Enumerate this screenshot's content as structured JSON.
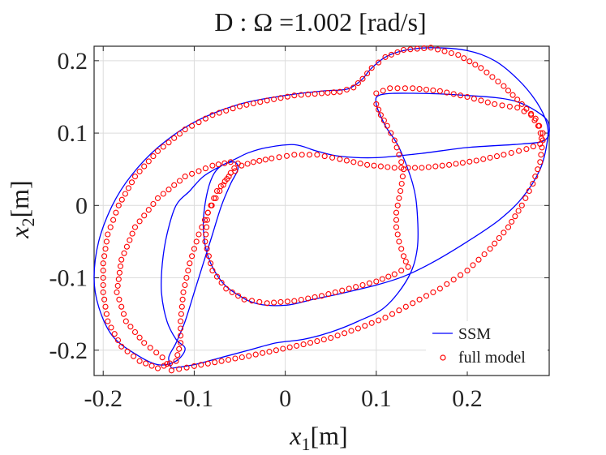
{
  "chart_data": {
    "type": "line",
    "title": "D : Ω =1.002 [rad/s]",
    "xlabel": {
      "symbol": "x",
      "sub": "1",
      "unit": "[m]"
    },
    "ylabel": {
      "symbol": "x",
      "sub": "2",
      "unit": "[m]"
    },
    "xlim": [
      -0.21,
      0.29
    ],
    "ylim": [
      -0.235,
      0.22
    ],
    "xticks": [
      -0.2,
      -0.1,
      0,
      0.1,
      0.2
    ],
    "xtick_labels": [
      "-0.2",
      "-0.1",
      "0",
      "0.1",
      "0.2"
    ],
    "yticks": [
      -0.2,
      -0.1,
      0,
      0.1,
      0.2
    ],
    "ytick_labels": [
      "-0.2",
      "-0.1",
      "0",
      "0.1",
      "0.2"
    ],
    "grid": true,
    "legend_position": "bottom-right",
    "series": [
      {
        "name": "SSM",
        "style": "line",
        "color": "#0000ff",
        "points": [
          [
            -0.125,
            -0.225
          ],
          [
            -0.1,
            -0.22
          ],
          [
            -0.07,
            -0.21
          ],
          [
            -0.04,
            -0.2
          ],
          [
            -0.01,
            -0.19
          ],
          [
            0.02,
            -0.185
          ],
          [
            0.05,
            -0.175
          ],
          [
            0.08,
            -0.16
          ],
          [
            0.11,
            -0.14
          ],
          [
            0.135,
            -0.1
          ],
          [
            0.145,
            -0.06
          ],
          [
            0.145,
            -0.01
          ],
          [
            0.14,
            0.03
          ],
          [
            0.125,
            0.08
          ],
          [
            0.11,
            0.11
          ],
          [
            0.1,
            0.14
          ],
          [
            0.105,
            0.153
          ],
          [
            0.14,
            0.155
          ],
          [
            0.2,
            0.152
          ],
          [
            0.25,
            0.145
          ],
          [
            0.282,
            0.125
          ],
          [
            0.29,
            0.108
          ],
          [
            0.285,
            0.09
          ],
          [
            0.26,
            0.085
          ],
          [
            0.2,
            0.08
          ],
          [
            0.15,
            0.072
          ],
          [
            0.1,
            0.066
          ],
          [
            0.06,
            0.068
          ],
          [
            0.035,
            0.075
          ],
          [
            0.01,
            0.084
          ],
          [
            -0.02,
            0.08
          ],
          [
            -0.04,
            0.073
          ],
          [
            -0.055,
            0.064
          ],
          [
            -0.07,
            0.055
          ],
          [
            -0.09,
            0.04
          ],
          [
            -0.105,
            0.02
          ],
          [
            -0.12,
            0
          ],
          [
            -0.13,
            -0.04
          ],
          [
            -0.135,
            -0.08
          ],
          [
            -0.136,
            -0.12
          ],
          [
            -0.13,
            -0.16
          ],
          [
            -0.12,
            -0.185
          ],
          [
            -0.11,
            -0.198
          ],
          [
            -0.12,
            -0.215
          ],
          [
            -0.14,
            -0.22
          ],
          [
            -0.165,
            -0.205
          ],
          [
            -0.19,
            -0.18
          ],
          [
            -0.205,
            -0.14
          ],
          [
            -0.21,
            -0.1
          ],
          [
            -0.205,
            -0.05
          ],
          [
            -0.19,
            0
          ],
          [
            -0.17,
            0.04
          ],
          [
            -0.14,
            0.08
          ],
          [
            -0.1,
            0.115
          ],
          [
            -0.05,
            0.14
          ],
          [
            0,
            0.152
          ],
          [
            0.04,
            0.158
          ],
          [
            0.065,
            0.16
          ],
          [
            0.075,
            0.165
          ],
          [
            0.085,
            0.175
          ],
          [
            0.095,
            0.19
          ],
          [
            0.11,
            0.205
          ],
          [
            0.13,
            0.214
          ],
          [
            0.16,
            0.218
          ],
          [
            0.2,
            0.214
          ],
          [
            0.23,
            0.2
          ],
          [
            0.255,
            0.175
          ],
          [
            0.275,
            0.145
          ],
          [
            0.287,
            0.115
          ],
          [
            0.288,
            0.09
          ],
          [
            0.28,
            0.05
          ],
          [
            0.26,
            0.01
          ],
          [
            0.235,
            -0.02
          ],
          [
            0.2,
            -0.05
          ],
          [
            0.16,
            -0.08
          ],
          [
            0.13,
            -0.098
          ],
          [
            0.1,
            -0.11
          ],
          [
            0.06,
            -0.122
          ],
          [
            0.03,
            -0.13
          ],
          [
            0,
            -0.138
          ],
          [
            -0.03,
            -0.136
          ],
          [
            -0.05,
            -0.125
          ],
          [
            -0.07,
            -0.105
          ],
          [
            -0.085,
            -0.07
          ],
          [
            -0.09,
            -0.03
          ],
          [
            -0.087,
            0.01
          ],
          [
            -0.08,
            0.04
          ],
          [
            -0.07,
            0.055
          ],
          [
            -0.056,
            0.06
          ],
          [
            -0.052,
            0.05
          ],
          [
            -0.06,
            0.03
          ],
          [
            -0.07,
            0
          ],
          [
            -0.08,
            -0.04
          ],
          [
            -0.09,
            -0.08
          ],
          [
            -0.1,
            -0.12
          ],
          [
            -0.11,
            -0.16
          ],
          [
            -0.12,
            -0.19
          ],
          [
            -0.128,
            -0.21
          ],
          [
            -0.125,
            -0.225
          ]
        ]
      },
      {
        "name": "full model",
        "style": "markers",
        "color": "#ff0000",
        "points": [
          [
            -0.125,
            -0.228
          ],
          [
            -0.1,
            -0.222
          ],
          [
            -0.07,
            -0.215
          ],
          [
            -0.04,
            -0.208
          ],
          [
            -0.01,
            -0.2
          ],
          [
            0.02,
            -0.192
          ],
          [
            0.05,
            -0.183
          ],
          [
            0.08,
            -0.17
          ],
          [
            0.11,
            -0.155
          ],
          [
            0.14,
            -0.135
          ],
          [
            0.17,
            -0.115
          ],
          [
            0.2,
            -0.09
          ],
          [
            0.225,
            -0.06
          ],
          [
            0.245,
            -0.03
          ],
          [
            0.26,
            0
          ],
          [
            0.272,
            0.03
          ],
          [
            0.28,
            0.06
          ],
          [
            0.283,
            0.09
          ],
          [
            0.278,
            0.11
          ],
          [
            0.27,
            0.125
          ],
          [
            0.255,
            0.135
          ],
          [
            0.23,
            0.14
          ],
          [
            0.2,
            0.15
          ],
          [
            0.17,
            0.158
          ],
          [
            0.14,
            0.162
          ],
          [
            0.115,
            0.162
          ],
          [
            0.1,
            0.155
          ],
          [
            0.1,
            0.14
          ],
          [
            0.105,
            0.125
          ],
          [
            0.112,
            0.11
          ],
          [
            0.12,
            0.09
          ],
          [
            0.125,
            0.07
          ],
          [
            0.13,
            0.05
          ],
          [
            0.128,
            0.03
          ],
          [
            0.125,
            0.01
          ],
          [
            0.122,
            -0.01
          ],
          [
            0.122,
            -0.03
          ],
          [
            0.125,
            -0.05
          ],
          [
            0.13,
            -0.07
          ],
          [
            0.135,
            -0.085
          ],
          [
            0.12,
            -0.095
          ],
          [
            0.1,
            -0.105
          ],
          [
            0.07,
            -0.115
          ],
          [
            0.04,
            -0.125
          ],
          [
            0.01,
            -0.132
          ],
          [
            -0.02,
            -0.135
          ],
          [
            -0.045,
            -0.13
          ],
          [
            -0.065,
            -0.115
          ],
          [
            -0.08,
            -0.09
          ],
          [
            -0.088,
            -0.05
          ],
          [
            -0.085,
            -0.01
          ],
          [
            -0.075,
            0.02
          ],
          [
            -0.062,
            0.04
          ],
          [
            -0.048,
            0.055
          ],
          [
            -0.035,
            0.06
          ],
          [
            -0.015,
            0.065
          ],
          [
            0.01,
            0.07
          ],
          [
            0.035,
            0.07
          ],
          [
            0.06,
            0.064
          ],
          [
            0.09,
            0.056
          ],
          [
            0.12,
            0.052
          ],
          [
            0.15,
            0.052
          ],
          [
            0.18,
            0.056
          ],
          [
            0.21,
            0.062
          ],
          [
            0.24,
            0.07
          ],
          [
            0.265,
            0.078
          ],
          [
            0.28,
            0.085
          ],
          [
            0.283,
            0.1
          ],
          [
            0.275,
            0.12
          ],
          [
            0.26,
            0.14
          ],
          [
            0.24,
            0.165
          ],
          [
            0.215,
            0.19
          ],
          [
            0.19,
            0.208
          ],
          [
            0.16,
            0.218
          ],
          [
            0.13,
            0.215
          ],
          [
            0.11,
            0.205
          ],
          [
            0.095,
            0.19
          ],
          [
            0.085,
            0.175
          ],
          [
            0.075,
            0.163
          ],
          [
            0.06,
            0.157
          ],
          [
            0.04,
            0.155
          ],
          [
            0.01,
            0.152
          ],
          [
            -0.02,
            0.145
          ],
          [
            -0.05,
            0.137
          ],
          [
            -0.08,
            0.125
          ],
          [
            -0.11,
            0.105
          ],
          [
            -0.14,
            0.075
          ],
          [
            -0.165,
            0.04
          ],
          [
            -0.183,
            0
          ],
          [
            -0.195,
            -0.04
          ],
          [
            -0.2,
            -0.08
          ],
          [
            -0.2,
            -0.12
          ],
          [
            -0.195,
            -0.16
          ],
          [
            -0.18,
            -0.195
          ],
          [
            -0.16,
            -0.215
          ],
          [
            -0.14,
            -0.225
          ],
          [
            -0.12,
            -0.215
          ],
          [
            -0.115,
            -0.19
          ],
          [
            -0.115,
            -0.16
          ],
          [
            -0.112,
            -0.12
          ],
          [
            -0.105,
            -0.08
          ],
          [
            -0.095,
            -0.04
          ],
          [
            -0.085,
            -0.01
          ],
          [
            -0.072,
            0.02
          ],
          [
            -0.06,
            0.045
          ],
          [
            -0.052,
            0.058
          ],
          [
            -0.06,
            0.06
          ],
          [
            -0.08,
            0.055
          ],
          [
            -0.11,
            0.04
          ],
          [
            -0.14,
            0.01
          ],
          [
            -0.165,
            -0.03
          ],
          [
            -0.18,
            -0.075
          ],
          [
            -0.185,
            -0.12
          ],
          [
            -0.175,
            -0.16
          ],
          [
            -0.155,
            -0.19
          ],
          [
            -0.135,
            -0.21
          ],
          [
            -0.125,
            -0.228
          ]
        ]
      }
    ]
  }
}
